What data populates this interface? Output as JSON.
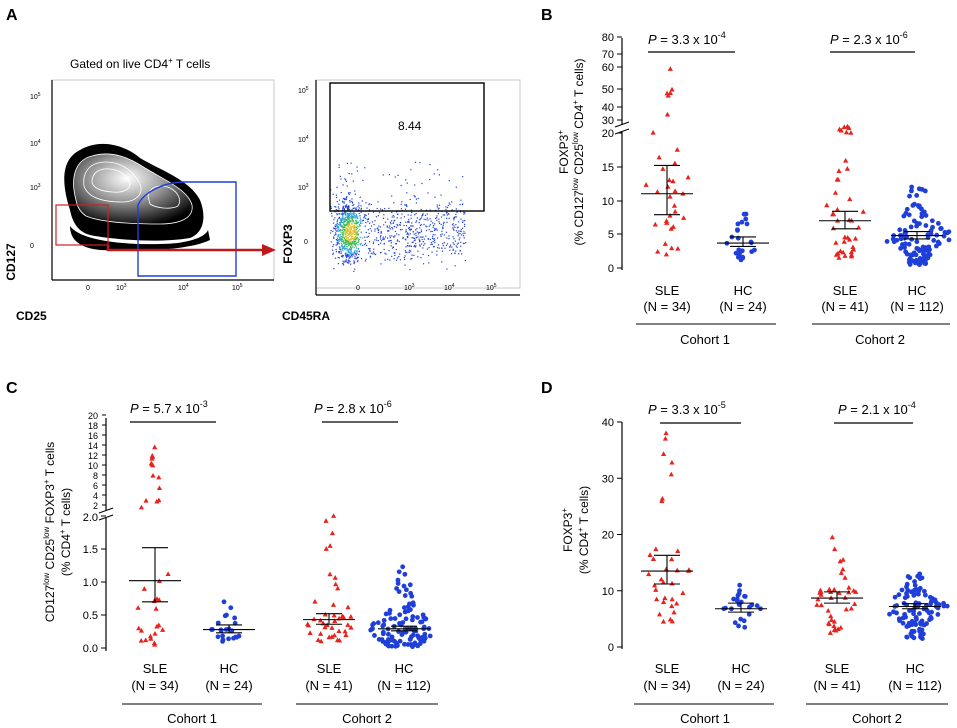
{
  "figure": {
    "panel_letters": [
      "A",
      "B",
      "C",
      "D"
    ],
    "flow_panel": {
      "gate_title": "Gated on live CD4",
      "gate_title_sup": "+",
      "gate_title_end": " T cells",
      "left_x_label": "CD25",
      "left_y_label": "CD127",
      "right_x_label": "CD45RA",
      "right_y_label": "FOXP3",
      "gate_percentage": "8.44",
      "axis_decades": [
        "0",
        "10",
        "10",
        "10",
        "10"
      ],
      "axis_exponents": [
        "",
        "3",
        "4",
        "5",
        ""
      ]
    }
  },
  "chart_data": [
    {
      "panel": "B",
      "type": "scatter",
      "ylabel_parts": [
        "FOXP3",
        "+",
        "(% CD127",
        "low",
        " CD25",
        "low",
        " CD4",
        "+",
        " T cells)"
      ],
      "axis_break": {
        "lower_range": [
          0,
          20
        ],
        "upper_range": [
          20,
          80
        ]
      },
      "yticks_lower": [
        "0",
        "5",
        "10",
        "15",
        "20"
      ],
      "yticks_upper": [
        "30",
        "40",
        "50",
        "60",
        "70",
        "80"
      ],
      "group_labels": [
        "SLE",
        "HC",
        "SLE",
        "HC"
      ],
      "group_ns": [
        "(N = 34)",
        "(N = 24)",
        "(N = 41)",
        "(N = 112)"
      ],
      "cohorts": [
        "Cohort 1",
        "Cohort 2"
      ],
      "pvalues": [
        {
          "prefix": "P",
          "text": " = 3.3 x 10",
          "exp": "-4"
        },
        {
          "prefix": "P",
          "text": " = 2.3 x 10",
          "exp": "-6"
        }
      ],
      "series": [
        {
          "name": "SLE Cohort 1",
          "color": "#e8221c",
          "marker": "triangle",
          "median": 11.0,
          "ci": [
            7.9,
            15.2
          ],
          "n": 34,
          "range": [
            2,
            60
          ]
        },
        {
          "name": "HC Cohort 1",
          "color": "#1f3fd8",
          "marker": "circle",
          "median": 3.7,
          "ci": [
            3.2,
            4.6
          ],
          "n": 24,
          "range": [
            1.2,
            8
          ]
        },
        {
          "name": "SLE Cohort 2",
          "color": "#e8221c",
          "marker": "triangle",
          "median": 7.0,
          "ci": [
            5.8,
            8.4
          ],
          "n": 41,
          "range": [
            1.5,
            24
          ]
        },
        {
          "name": "HC Cohort 2",
          "color": "#1f3fd8",
          "marker": "circle",
          "median": 4.8,
          "ci": [
            4.3,
            5.4
          ],
          "n": 112,
          "range": [
            0.5,
            12
          ]
        }
      ]
    },
    {
      "panel": "C",
      "type": "scatter",
      "ylabel_parts": [
        "CD127",
        "low",
        " CD25",
        "low",
        " FOXP3",
        "+",
        " T cells",
        "(% CD4",
        "+",
        " T cells)"
      ],
      "axis_break": {
        "lower_range": [
          0,
          2
        ],
        "upper_range": [
          2,
          20
        ]
      },
      "yticks_lower": [
        "0.0",
        "0.5",
        "1.0",
        "1.5",
        "2.0"
      ],
      "yticks_upper": [
        "2",
        "4",
        "6",
        "8",
        "10",
        "12",
        "14",
        "16",
        "18",
        "20"
      ],
      "group_labels": [
        "SLE",
        "HC",
        "SLE",
        "HC"
      ],
      "group_ns": [
        "(N = 34)",
        "(N = 24)",
        "(N = 41)",
        "(N = 112)"
      ],
      "cohorts": [
        "Cohort 1",
        "Cohort 2"
      ],
      "pvalues": [
        {
          "prefix": "P",
          "text": " = 5.7 x 10",
          "exp": "-3"
        },
        {
          "prefix": "P",
          "text": " = 2.8 x 10",
          "exp": "-6"
        }
      ],
      "series": [
        {
          "name": "SLE Cohort 1",
          "color": "#e8221c",
          "marker": "triangle",
          "median": 1.02,
          "ci": [
            0.7,
            1.52
          ],
          "n": 34,
          "range": [
            0.05,
            14.5
          ]
        },
        {
          "name": "HC Cohort 1",
          "color": "#1f3fd8",
          "marker": "circle",
          "median": 0.28,
          "ci": [
            0.23,
            0.35
          ],
          "n": 24,
          "range": [
            0.1,
            0.7
          ]
        },
        {
          "name": "SLE Cohort 2",
          "color": "#e8221c",
          "marker": "triangle",
          "median": 0.43,
          "ci": [
            0.36,
            0.52
          ],
          "n": 41,
          "range": [
            0.1,
            2.0
          ]
        },
        {
          "name": "HC Cohort 2",
          "color": "#1f3fd8",
          "marker": "circle",
          "median": 0.29,
          "ci": [
            0.26,
            0.33
          ],
          "n": 112,
          "range": [
            0.02,
            1.23
          ]
        }
      ]
    },
    {
      "panel": "D",
      "type": "scatter",
      "ylabel_parts": [
        "FOXP3",
        "+",
        "(% CD4",
        "+",
        " T cells)"
      ],
      "ylim": [
        0,
        40
      ],
      "yticks": [
        "0",
        "10",
        "20",
        "30",
        "40"
      ],
      "group_labels": [
        "SLE",
        "HC",
        "SLE",
        "HC"
      ],
      "group_ns": [
        "(N = 34)",
        "(N = 24)",
        "(N = 41)",
        "(N = 112)"
      ],
      "cohorts": [
        "Cohort 1",
        "Cohort 2"
      ],
      "pvalues": [
        {
          "prefix": "P",
          "text": " = 3.3 x 10",
          "exp": "-5"
        },
        {
          "prefix": "P",
          "text": " = 2.1 x 10",
          "exp": "-4"
        }
      ],
      "series": [
        {
          "name": "SLE Cohort 1",
          "color": "#e8221c",
          "marker": "triangle",
          "median": 13.5,
          "ci": [
            11.2,
            16.3
          ],
          "n": 34,
          "range": [
            4.5,
            38
          ]
        },
        {
          "name": "HC Cohort 1",
          "color": "#1f3fd8",
          "marker": "circle",
          "median": 6.8,
          "ci": [
            6.2,
            7.8
          ],
          "n": 24,
          "range": [
            3.5,
            11
          ]
        },
        {
          "name": "SLE Cohort 2",
          "color": "#e8221c",
          "marker": "triangle",
          "median": 8.7,
          "ci": [
            7.8,
            9.8
          ],
          "n": 41,
          "range": [
            2.5,
            19.5
          ]
        },
        {
          "name": "HC Cohort 2",
          "color": "#1f3fd8",
          "marker": "circle",
          "median": 7.2,
          "ci": [
            6.8,
            7.7
          ],
          "n": 112,
          "range": [
            1.5,
            13
          ]
        }
      ]
    }
  ]
}
